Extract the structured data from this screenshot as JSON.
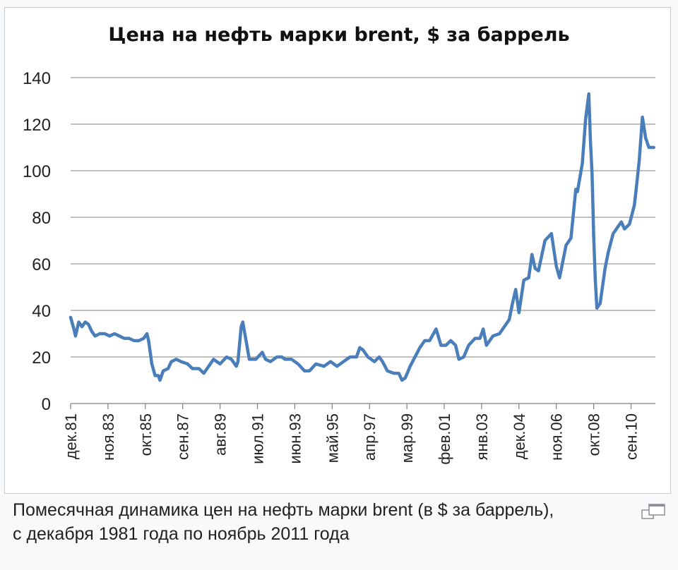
{
  "caption": {
    "line1": "Помесячная динамика цен на нефть марки brent (в $ за баррель),",
    "line2": "с декабря 1981 года по ноябрь 2011 года"
  },
  "icons": {
    "enlarge": "magnify-clip-icon"
  },
  "colors": {
    "line": "#4a7ebb",
    "grid": "#808080",
    "frame": "#c8ccd1"
  },
  "chart_data": {
    "type": "line",
    "title": "Цена на нефть марки brent, $ за баррель",
    "xlabel": "",
    "ylabel": "",
    "ylim": [
      0,
      140
    ],
    "yticks": [
      0,
      20,
      40,
      60,
      80,
      100,
      120,
      140
    ],
    "grid": true,
    "legend": "none",
    "x_tick_labels": [
      "дек.81",
      "ноя.83",
      "окт.85",
      "сен.87",
      "авг.89",
      "июл.91",
      "июн.93",
      "май.95",
      "апр.97",
      "мар.99",
      "фев.01",
      "янв.03",
      "дек.04",
      "ноя.06",
      "окт.08",
      "сен.10"
    ],
    "series": [
      {
        "values": [
          {
            "x": "1981-12",
            "y": 37
          },
          {
            "x": "1982-02",
            "y": 32
          },
          {
            "x": "1982-03",
            "y": 29
          },
          {
            "x": "1982-05",
            "y": 35
          },
          {
            "x": "1982-07",
            "y": 33
          },
          {
            "x": "1982-09",
            "y": 35
          },
          {
            "x": "1982-11",
            "y": 34
          },
          {
            "x": "1983-01",
            "y": 31
          },
          {
            "x": "1983-03",
            "y": 29
          },
          {
            "x": "1983-06",
            "y": 30
          },
          {
            "x": "1983-09",
            "y": 30
          },
          {
            "x": "1983-12",
            "y": 29
          },
          {
            "x": "1984-03",
            "y": 30
          },
          {
            "x": "1984-06",
            "y": 29
          },
          {
            "x": "1984-09",
            "y": 28
          },
          {
            "x": "1984-12",
            "y": 28
          },
          {
            "x": "1985-03",
            "y": 27
          },
          {
            "x": "1985-06",
            "y": 27
          },
          {
            "x": "1985-09",
            "y": 28
          },
          {
            "x": "1985-11",
            "y": 30
          },
          {
            "x": "1985-12",
            "y": 27
          },
          {
            "x": "1986-02",
            "y": 17
          },
          {
            "x": "1986-04",
            "y": 12
          },
          {
            "x": "1986-06",
            "y": 12
          },
          {
            "x": "1986-07",
            "y": 10
          },
          {
            "x": "1986-09",
            "y": 14
          },
          {
            "x": "1986-12",
            "y": 15
          },
          {
            "x": "1987-02",
            "y": 18
          },
          {
            "x": "1987-05",
            "y": 19
          },
          {
            "x": "1987-08",
            "y": 18
          },
          {
            "x": "1987-12",
            "y": 17
          },
          {
            "x": "1988-03",
            "y": 15
          },
          {
            "x": "1988-07",
            "y": 15
          },
          {
            "x": "1988-10",
            "y": 13
          },
          {
            "x": "1988-12",
            "y": 15
          },
          {
            "x": "1989-04",
            "y": 19
          },
          {
            "x": "1989-08",
            "y": 17
          },
          {
            "x": "1989-12",
            "y": 20
          },
          {
            "x": "1990-03",
            "y": 19
          },
          {
            "x": "1990-06",
            "y": 16
          },
          {
            "x": "1990-07",
            "y": 18
          },
          {
            "x": "1990-09",
            "y": 33
          },
          {
            "x": "1990-10",
            "y": 35
          },
          {
            "x": "1990-11",
            "y": 31
          },
          {
            "x": "1990-12",
            "y": 27
          },
          {
            "x": "1991-01",
            "y": 23
          },
          {
            "x": "1991-02",
            "y": 19
          },
          {
            "x": "1991-06",
            "y": 19
          },
          {
            "x": "1991-10",
            "y": 22
          },
          {
            "x": "1991-12",
            "y": 19
          },
          {
            "x": "1992-03",
            "y": 18
          },
          {
            "x": "1992-07",
            "y": 20
          },
          {
            "x": "1992-10",
            "y": 20
          },
          {
            "x": "1992-12",
            "y": 19
          },
          {
            "x": "1993-04",
            "y": 19
          },
          {
            "x": "1993-08",
            "y": 17
          },
          {
            "x": "1993-12",
            "y": 14
          },
          {
            "x": "1994-03",
            "y": 14
          },
          {
            "x": "1994-07",
            "y": 17
          },
          {
            "x": "1994-12",
            "y": 16
          },
          {
            "x": "1995-04",
            "y": 18
          },
          {
            "x": "1995-08",
            "y": 16
          },
          {
            "x": "1995-12",
            "y": 18
          },
          {
            "x": "1996-04",
            "y": 20
          },
          {
            "x": "1996-08",
            "y": 20
          },
          {
            "x": "1996-10",
            "y": 24
          },
          {
            "x": "1996-12",
            "y": 23
          },
          {
            "x": "1997-03",
            "y": 20
          },
          {
            "x": "1997-07",
            "y": 18
          },
          {
            "x": "1997-10",
            "y": 20
          },
          {
            "x": "1997-12",
            "y": 18
          },
          {
            "x": "1998-03",
            "y": 14
          },
          {
            "x": "1998-07",
            "y": 13
          },
          {
            "x": "1998-10",
            "y": 13
          },
          {
            "x": "1998-12",
            "y": 10
          },
          {
            "x": "1999-02",
            "y": 11
          },
          {
            "x": "1999-05",
            "y": 16
          },
          {
            "x": "1999-08",
            "y": 20
          },
          {
            "x": "1999-11",
            "y": 24
          },
          {
            "x": "2000-02",
            "y": 27
          },
          {
            "x": "2000-05",
            "y": 27
          },
          {
            "x": "2000-09",
            "y": 32
          },
          {
            "x": "2000-12",
            "y": 25
          },
          {
            "x": "2001-03",
            "y": 25
          },
          {
            "x": "2001-06",
            "y": 27
          },
          {
            "x": "2001-09",
            "y": 25
          },
          {
            "x": "2001-11",
            "y": 19
          },
          {
            "x": "2002-02",
            "y": 20
          },
          {
            "x": "2002-05",
            "y": 25
          },
          {
            "x": "2002-09",
            "y": 28
          },
          {
            "x": "2002-12",
            "y": 28
          },
          {
            "x": "2003-02",
            "y": 32
          },
          {
            "x": "2003-04",
            "y": 25
          },
          {
            "x": "2003-08",
            "y": 29
          },
          {
            "x": "2003-12",
            "y": 30
          },
          {
            "x": "2004-03",
            "y": 33
          },
          {
            "x": "2004-06",
            "y": 36
          },
          {
            "x": "2004-08",
            "y": 43
          },
          {
            "x": "2004-10",
            "y": 49
          },
          {
            "x": "2004-12",
            "y": 39
          },
          {
            "x": "2005-03",
            "y": 53
          },
          {
            "x": "2005-06",
            "y": 54
          },
          {
            "x": "2005-08",
            "y": 64
          },
          {
            "x": "2005-10",
            "y": 58
          },
          {
            "x": "2005-12",
            "y": 57
          },
          {
            "x": "2006-04",
            "y": 70
          },
          {
            "x": "2006-08",
            "y": 73
          },
          {
            "x": "2006-11",
            "y": 59
          },
          {
            "x": "2007-01",
            "y": 54
          },
          {
            "x": "2007-05",
            "y": 68
          },
          {
            "x": "2007-08",
            "y": 71
          },
          {
            "x": "2007-11",
            "y": 92
          },
          {
            "x": "2007-12",
            "y": 91
          },
          {
            "x": "2008-03",
            "y": 103
          },
          {
            "x": "2008-05",
            "y": 122
          },
          {
            "x": "2008-07",
            "y": 133
          },
          {
            "x": "2008-08",
            "y": 113
          },
          {
            "x": "2008-09",
            "y": 99
          },
          {
            "x": "2008-10",
            "y": 72
          },
          {
            "x": "2008-11",
            "y": 53
          },
          {
            "x": "2008-12",
            "y": 41
          },
          {
            "x": "2009-02",
            "y": 43
          },
          {
            "x": "2009-05",
            "y": 58
          },
          {
            "x": "2009-07",
            "y": 65
          },
          {
            "x": "2009-10",
            "y": 73
          },
          {
            "x": "2009-12",
            "y": 75
          },
          {
            "x": "2010-03",
            "y": 78
          },
          {
            "x": "2010-05",
            "y": 75
          },
          {
            "x": "2010-08",
            "y": 77
          },
          {
            "x": "2010-11",
            "y": 85
          },
          {
            "x": "2010-12",
            "y": 91
          },
          {
            "x": "2011-02",
            "y": 104
          },
          {
            "x": "2011-04",
            "y": 123
          },
          {
            "x": "2011-06",
            "y": 114
          },
          {
            "x": "2011-08",
            "y": 110
          },
          {
            "x": "2011-11",
            "y": 110
          }
        ]
      }
    ]
  }
}
